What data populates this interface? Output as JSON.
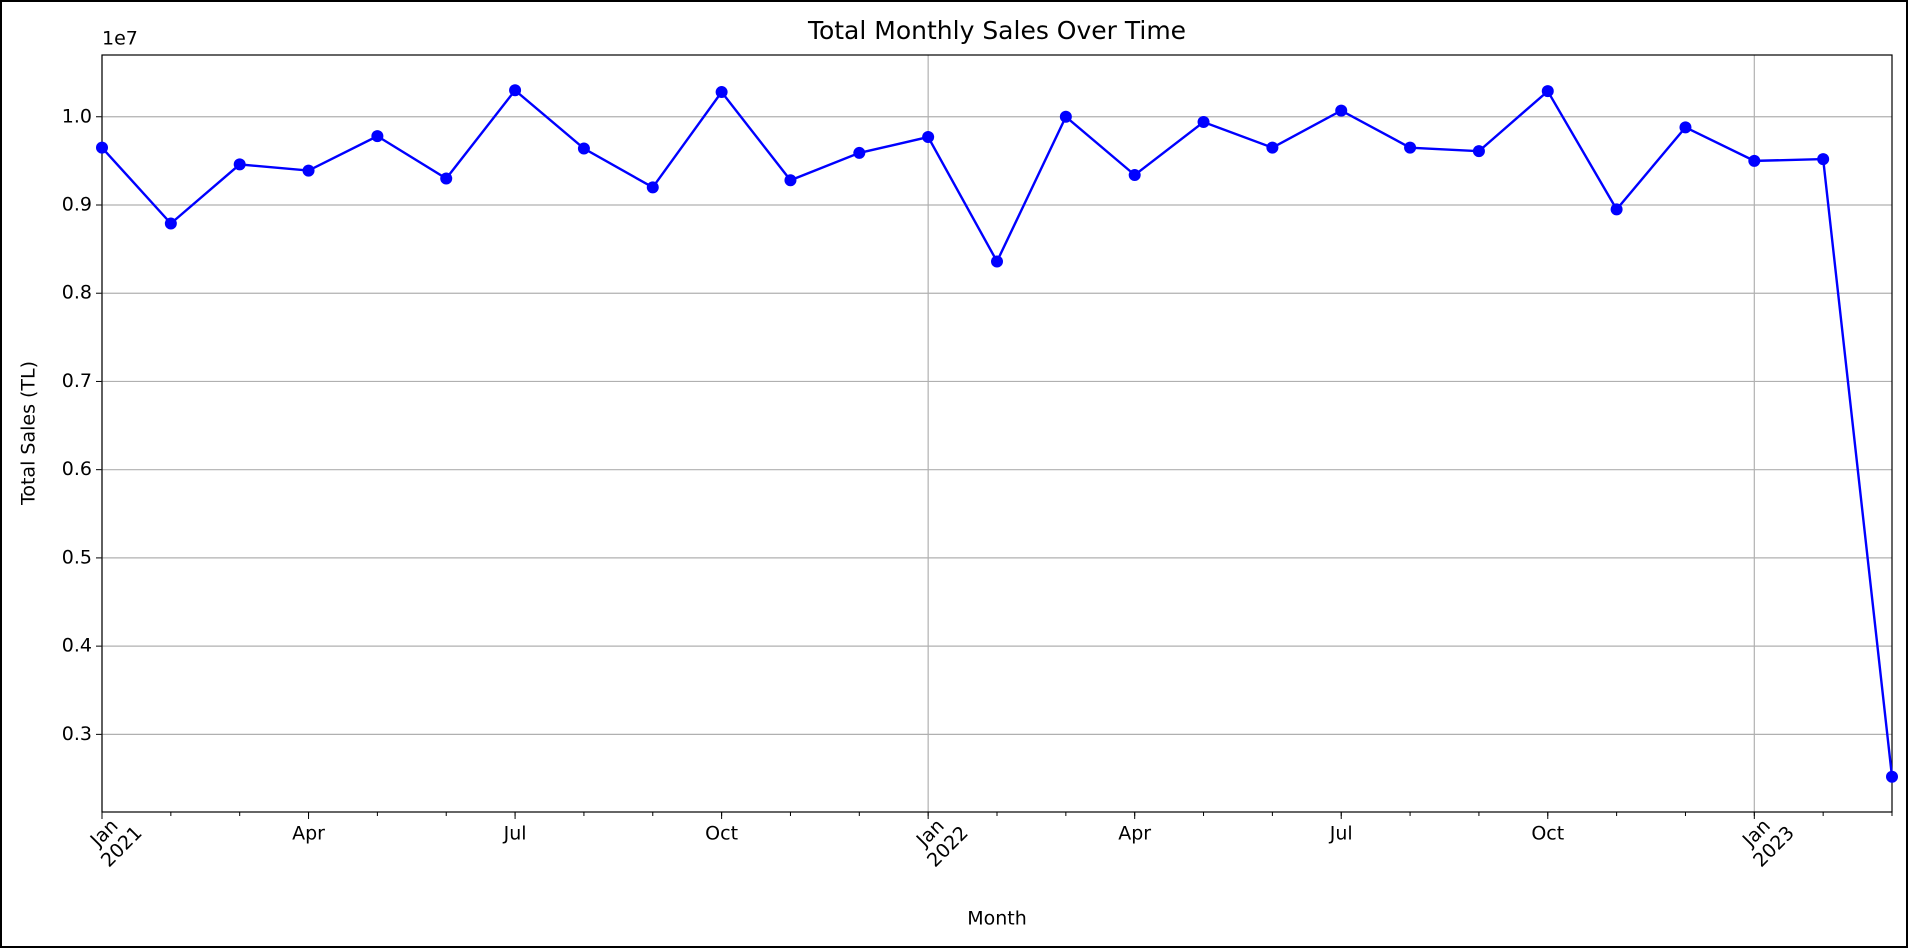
{
  "chart_data": {
    "type": "line",
    "title": "Total Monthly Sales Over Time",
    "xlabel": "Month",
    "ylabel": "Total Sales (TL)",
    "offset_label": "1e7",
    "x": [
      "2021-01",
      "2021-02",
      "2021-03",
      "2021-04",
      "2021-05",
      "2021-06",
      "2021-07",
      "2021-08",
      "2021-09",
      "2021-10",
      "2021-11",
      "2021-12",
      "2022-01",
      "2022-02",
      "2022-03",
      "2022-04",
      "2022-05",
      "2022-06",
      "2022-07",
      "2022-08",
      "2022-09",
      "2022-10",
      "2022-11",
      "2022-12",
      "2023-01",
      "2023-02",
      "2023-03"
    ],
    "series": [
      {
        "name": "Total Sales",
        "color": "#0000ff",
        "values": [
          0.965,
          0.879,
          0.946,
          0.939,
          0.978,
          0.93,
          1.03,
          0.964,
          0.92,
          1.028,
          0.928,
          0.959,
          0.977,
          0.836,
          1.0,
          0.934,
          0.994,
          0.965,
          1.007,
          0.965,
          0.961,
          1.029,
          0.895,
          0.988,
          0.95,
          0.952,
          0.252
        ]
      }
    ],
    "ylim": [
      0.212,
      1.07
    ],
    "yticks": [
      0.3,
      0.4,
      0.5,
      0.6,
      0.7,
      0.8,
      0.9,
      {
        "value": 1.0,
        "label": "1.0"
      }
    ],
    "xticks": [
      {
        "value": "2021-01",
        "label": [
          "Jan",
          "2021"
        ]
      },
      {
        "value": "2021-04",
        "label": [
          "Apr"
        ]
      },
      {
        "value": "2021-07",
        "label": [
          "Jul"
        ]
      },
      {
        "value": "2021-10",
        "label": [
          "Oct"
        ]
      },
      {
        "value": "2022-01",
        "label": [
          "Jan",
          "2022"
        ]
      },
      {
        "value": "2022-04",
        "label": [
          "Apr"
        ]
      },
      {
        "value": "2022-07",
        "label": [
          "Jul"
        ]
      },
      {
        "value": "2022-10",
        "label": [
          "Oct"
        ]
      },
      {
        "value": "2023-01",
        "label": [
          "Jan",
          "2023"
        ]
      }
    ],
    "grid": true
  }
}
